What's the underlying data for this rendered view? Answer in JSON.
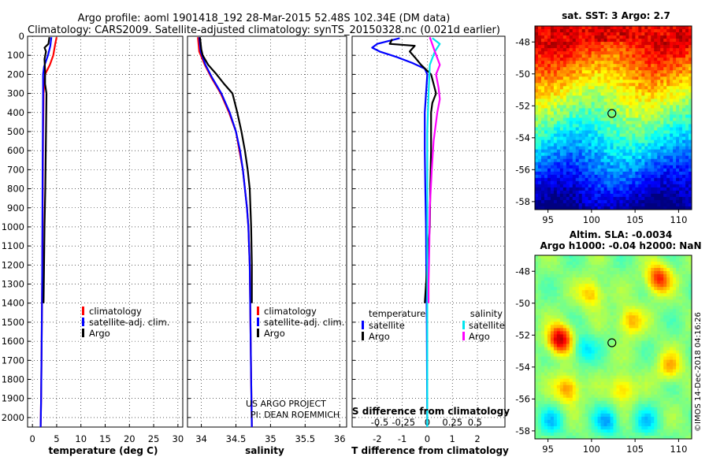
{
  "title_line1": "Argo profile: aoml 1901418_192 28-Mar-2015 52.48S 102.34E (DM data)",
  "title_line2": "Climatology: CARS2009. Satellite-adjusted climatology: synTS_20150328.nc (0.021d earlier)",
  "depth_ticks": [
    "0",
    "100",
    "200",
    "300",
    "400",
    "500",
    "600",
    "700",
    "800",
    "900",
    "1000",
    "1100",
    "1200",
    "1300",
    "1400",
    "1500",
    "1600",
    "1700",
    "1800",
    "1900",
    "2000"
  ],
  "chart_data": [
    {
      "type": "line",
      "id": "temperature",
      "xlabel": "temperature (deg C)",
      "xlim": [
        -1,
        31
      ],
      "ylim": [
        2050,
        0
      ],
      "xticks": [
        "0",
        "5",
        "10",
        "15",
        "20",
        "25",
        "30"
      ],
      "legend": [
        "climatology",
        "satellite-adj. clim.",
        "Argo"
      ],
      "series": [
        {
          "name": "climatology",
          "color": "#ff0000",
          "points": [
            [
              5.0,
              5
            ],
            [
              4.7,
              40
            ],
            [
              4.3,
              100
            ],
            [
              3.6,
              150
            ],
            [
              2.6,
              200
            ],
            [
              2.3,
              300
            ],
            [
              2.2,
              500
            ],
            [
              2.15,
              700
            ],
            [
              2.1,
              1000
            ],
            [
              2.0,
              1300
            ],
            [
              1.9,
              1600
            ],
            [
              1.8,
              1900
            ],
            [
              1.7,
              2050
            ]
          ]
        },
        {
          "name": "satellite-adj. clim.",
          "color": "#0000ff",
          "points": [
            [
              3.9,
              5
            ],
            [
              3.7,
              50
            ],
            [
              3.2,
              100
            ],
            [
              2.4,
              160
            ],
            [
              2.2,
              200
            ],
            [
              2.2,
              300
            ],
            [
              2.15,
              500
            ],
            [
              2.1,
              700
            ],
            [
              2.05,
              1000
            ],
            [
              2.0,
              1300
            ],
            [
              1.9,
              1600
            ],
            [
              1.8,
              1900
            ],
            [
              1.7,
              2050
            ]
          ]
        },
        {
          "name": "Argo",
          "color": "#000000",
          "points": [
            [
              3.5,
              5
            ],
            [
              3.3,
              40
            ],
            [
              2.5,
              60
            ],
            [
              2.8,
              80
            ],
            [
              2.5,
              120
            ],
            [
              2.6,
              180
            ],
            [
              2.6,
              250
            ],
            [
              2.9,
              300
            ],
            [
              2.85,
              400
            ],
            [
              2.75,
              600
            ],
            [
              2.65,
              800
            ],
            [
              2.5,
              1000
            ],
            [
              2.4,
              1200
            ],
            [
              2.3,
              1400
            ]
          ]
        }
      ]
    },
    {
      "type": "line",
      "id": "salinity",
      "xlabel": "salinity",
      "xlim": [
        33.8,
        36.1
      ],
      "ylim": [
        2050,
        0
      ],
      "xticks": [
        "34",
        "34.5",
        "35",
        "35.5",
        "36"
      ],
      "legend": [
        "climatology",
        "satellite-adj. clim.",
        "Argo"
      ],
      "series": [
        {
          "name": "climatology",
          "color": "#ff0000",
          "points": [
            [
              33.95,
              5
            ],
            [
              33.97,
              80
            ],
            [
              34.05,
              150
            ],
            [
              34.15,
              220
            ],
            [
              34.28,
              300
            ],
            [
              34.4,
              400
            ],
            [
              34.5,
              500
            ],
            [
              34.55,
              600
            ],
            [
              34.6,
              700
            ],
            [
              34.63,
              800
            ],
            [
              34.66,
              900
            ],
            [
              34.68,
              1000
            ],
            [
              34.7,
              1200
            ],
            [
              34.71,
              1500
            ],
            [
              34.72,
              1800
            ],
            [
              34.73,
              2050
            ]
          ]
        },
        {
          "name": "satellite-adj. clim.",
          "color": "#0000ff",
          "points": [
            [
              33.97,
              5
            ],
            [
              33.99,
              80
            ],
            [
              34.06,
              150
            ],
            [
              34.16,
              220
            ],
            [
              34.29,
              300
            ],
            [
              34.41,
              400
            ],
            [
              34.5,
              500
            ],
            [
              34.56,
              600
            ],
            [
              34.6,
              700
            ],
            [
              34.63,
              800
            ],
            [
              34.66,
              900
            ],
            [
              34.68,
              1000
            ],
            [
              34.7,
              1200
            ],
            [
              34.71,
              1500
            ],
            [
              34.72,
              1800
            ],
            [
              34.73,
              2050
            ]
          ]
        },
        {
          "name": "Argo",
          "color": "#000000",
          "points": [
            [
              33.98,
              5
            ],
            [
              34.0,
              70
            ],
            [
              34.02,
              100
            ],
            [
              34.1,
              150
            ],
            [
              34.22,
              200
            ],
            [
              34.33,
              250
            ],
            [
              34.45,
              300
            ],
            [
              34.52,
              400
            ],
            [
              34.58,
              500
            ],
            [
              34.63,
              600
            ],
            [
              34.67,
              700
            ],
            [
              34.7,
              800
            ],
            [
              34.71,
              900
            ],
            [
              34.72,
              1000
            ],
            [
              34.73,
              1200
            ],
            [
              34.73,
              1400
            ]
          ]
        }
      ],
      "credits": [
        "US ARGO PROJECT",
        "PI: DEAN ROEMMICH"
      ]
    },
    {
      "type": "line",
      "id": "difference",
      "xlabel": "T difference from climatology",
      "xlabel_top": "S difference from climatology",
      "xlim": [
        -3,
        3.1
      ],
      "ylim": [
        2050,
        0
      ],
      "xticks": [
        "-2",
        "-1",
        "0",
        "1",
        "2"
      ],
      "xticks_top": [
        {
          "v": -1.9,
          "label": "-0.5"
        },
        {
          "v": -0.95,
          "label": "-0.25"
        },
        {
          "v": 0.0,
          "label": "0"
        },
        {
          "v": 1.0,
          "label": "0.25"
        },
        {
          "v": 1.9,
          "label": "0.5"
        }
      ],
      "legend_left_title": "temperature",
      "legend_left": [
        "satellite",
        "Argo"
      ],
      "legend_right_title": "salinity",
      "legend_right": [
        "satellite",
        "Argo"
      ],
      "series": [
        {
          "name": "T satellite",
          "color": "#0000ff",
          "points": [
            [
              -1.1,
              10
            ],
            [
              -2.0,
              40
            ],
            [
              -2.2,
              60
            ],
            [
              -1.9,
              80
            ],
            [
              -1.2,
              110
            ],
            [
              -0.6,
              140
            ],
            [
              -0.1,
              170
            ],
            [
              0.0,
              200
            ],
            [
              -0.05,
              300
            ],
            [
              -0.1,
              400
            ],
            [
              -0.1,
              600
            ],
            [
              -0.08,
              800
            ],
            [
              -0.05,
              1000
            ],
            [
              -0.04,
              1200
            ],
            [
              -0.02,
              1500
            ],
            [
              -0.01,
              1800
            ],
            [
              0.0,
              2050
            ]
          ]
        },
        {
          "name": "T Argo",
          "color": "#000000",
          "points": [
            [
              -1.4,
              15
            ],
            [
              -1.5,
              40
            ],
            [
              -0.5,
              50
            ],
            [
              -0.7,
              80
            ],
            [
              -0.5,
              110
            ],
            [
              -0.25,
              150
            ],
            [
              0.15,
              200
            ],
            [
              0.25,
              250
            ],
            [
              0.35,
              300
            ],
            [
              0.2,
              350
            ],
            [
              0.15,
              400
            ],
            [
              0.15,
              600
            ],
            [
              0.12,
              800
            ],
            [
              0.1,
              1000
            ],
            [
              0.0,
              1200
            ],
            [
              -0.1,
              1400
            ]
          ]
        },
        {
          "name": "S satellite",
          "color": "#00e5ee",
          "points": [
            [
              0.2,
              10
            ],
            [
              0.5,
              40
            ],
            [
              0.3,
              80
            ],
            [
              0.1,
              150
            ],
            [
              0.05,
              300
            ],
            [
              0.0,
              500
            ],
            [
              0.0,
              800
            ],
            [
              0.0,
              1200
            ],
            [
              0.0,
              1600
            ],
            [
              0.0,
              2050
            ]
          ]
        },
        {
          "name": "S Argo",
          "color": "#ff00ff",
          "points": [
            [
              0.1,
              5
            ],
            [
              0.3,
              80
            ],
            [
              0.5,
              150
            ],
            [
              0.35,
              200
            ],
            [
              0.45,
              270
            ],
            [
              0.5,
              330
            ],
            [
              0.4,
              400
            ],
            [
              0.25,
              550
            ],
            [
              0.18,
              700
            ],
            [
              0.1,
              900
            ],
            [
              0.08,
              1100
            ],
            [
              0.05,
              1300
            ],
            [
              0.05,
              1400
            ]
          ]
        }
      ]
    }
  ],
  "maps": {
    "sst": {
      "title": "sat. SST: 3 Argo: 2.7",
      "lat_ticks": [
        "-48",
        "-50",
        "-52",
        "-54",
        "-56",
        "-58"
      ],
      "lon_ticks": [
        "95",
        "100",
        "105",
        "110"
      ],
      "argo_lon": 102.34,
      "argo_lat": -52.48
    },
    "sla": {
      "title_line1": "Altim. SLA: -0.0034",
      "title_line2": "Argo h1000: -0.04 h2000: NaN",
      "lat_ticks": [
        "-48",
        "-50",
        "-52",
        "-54",
        "-56",
        "-58"
      ],
      "lon_ticks": [
        "95",
        "100",
        "105",
        "110"
      ],
      "argo_lon": 102.34,
      "argo_lat": -52.48
    }
  },
  "footer_stamp": "©IMOS 14-Dec-2018 04:16:26"
}
